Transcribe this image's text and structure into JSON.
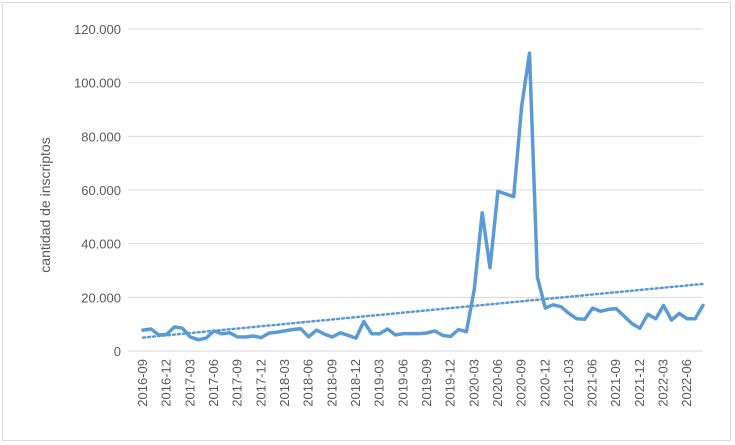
{
  "chart_data": {
    "type": "line",
    "ylabel": "cantidad de inscriptos",
    "xlabel": "",
    "ylim": [
      0,
      120000
    ],
    "y_ticks": [
      0,
      20000,
      40000,
      60000,
      80000,
      100000,
      120000
    ],
    "y_tick_labels": [
      "0",
      "20.000",
      "40.000",
      "60.000",
      "80.000",
      "100.000",
      "120.000"
    ],
    "x_tick_labels": [
      "2016-09",
      "2016-12",
      "2017-03",
      "2017-06",
      "2017-09",
      "2017-12",
      "2018-03",
      "2018-06",
      "2018-09",
      "2018-12",
      "2019-03",
      "2019-06",
      "2019-09",
      "2019-12",
      "2020-03",
      "2020-06",
      "2020-09",
      "2020-12",
      "2021-03",
      "2021-06",
      "2021-09",
      "2021-12",
      "2022-03",
      "2022-06"
    ],
    "grid": true,
    "legend": "none",
    "colors": {
      "series": "#5b9bd5",
      "grid": "#d9d9d9",
      "text": "#595959"
    },
    "x": [
      "2016-09",
      "2016-10",
      "2016-11",
      "2016-12",
      "2017-01",
      "2017-02",
      "2017-03",
      "2017-04",
      "2017-05",
      "2017-06",
      "2017-07",
      "2017-08",
      "2017-09",
      "2017-10",
      "2017-11",
      "2017-12",
      "2018-01",
      "2018-02",
      "2018-03",
      "2018-04",
      "2018-05",
      "2018-06",
      "2018-07",
      "2018-08",
      "2018-09",
      "2018-10",
      "2018-11",
      "2018-12",
      "2019-01",
      "2019-02",
      "2019-03",
      "2019-04",
      "2019-05",
      "2019-06",
      "2019-07",
      "2019-08",
      "2019-09",
      "2019-10",
      "2019-11",
      "2019-12",
      "2020-01",
      "2020-02",
      "2020-03",
      "2020-04",
      "2020-05",
      "2020-06",
      "2020-07",
      "2020-08",
      "2020-09",
      "2020-10",
      "2020-11",
      "2020-12",
      "2021-01",
      "2021-02",
      "2021-03",
      "2021-04",
      "2021-05",
      "2021-06",
      "2021-07",
      "2021-08",
      "2021-09",
      "2021-10",
      "2021-11",
      "2021-12",
      "2022-01",
      "2022-02",
      "2022-03",
      "2022-04",
      "2022-05",
      "2022-06",
      "2022-07",
      "2022-08"
    ],
    "series": [
      {
        "values": [
          7800,
          8200,
          6000,
          6200,
          9000,
          8500,
          5200,
          4200,
          4800,
          7500,
          6400,
          6800,
          5200,
          5200,
          5600,
          5000,
          6700,
          7000,
          7500,
          8000,
          8300,
          5300,
          7800,
          6300,
          5200,
          6800,
          5800,
          4800,
          11000,
          6400,
          6400,
          8200,
          6000,
          6500,
          6500,
          6500,
          6700,
          7500,
          5800,
          5400,
          8000,
          7200,
          23000,
          51500,
          31000,
          59500,
          58500,
          57500,
          91000,
          111000,
          27500,
          16000,
          17200,
          16500,
          14000,
          12000,
          11800,
          16000,
          14800,
          15500,
          15800,
          13000,
          10200,
          8500,
          13700,
          12000,
          17000,
          11500,
          14000,
          12000,
          12000,
          17000
        ]
      }
    ],
    "trendline": {
      "type": "linear",
      "start_value": 5000,
      "end_value": 25000
    }
  }
}
